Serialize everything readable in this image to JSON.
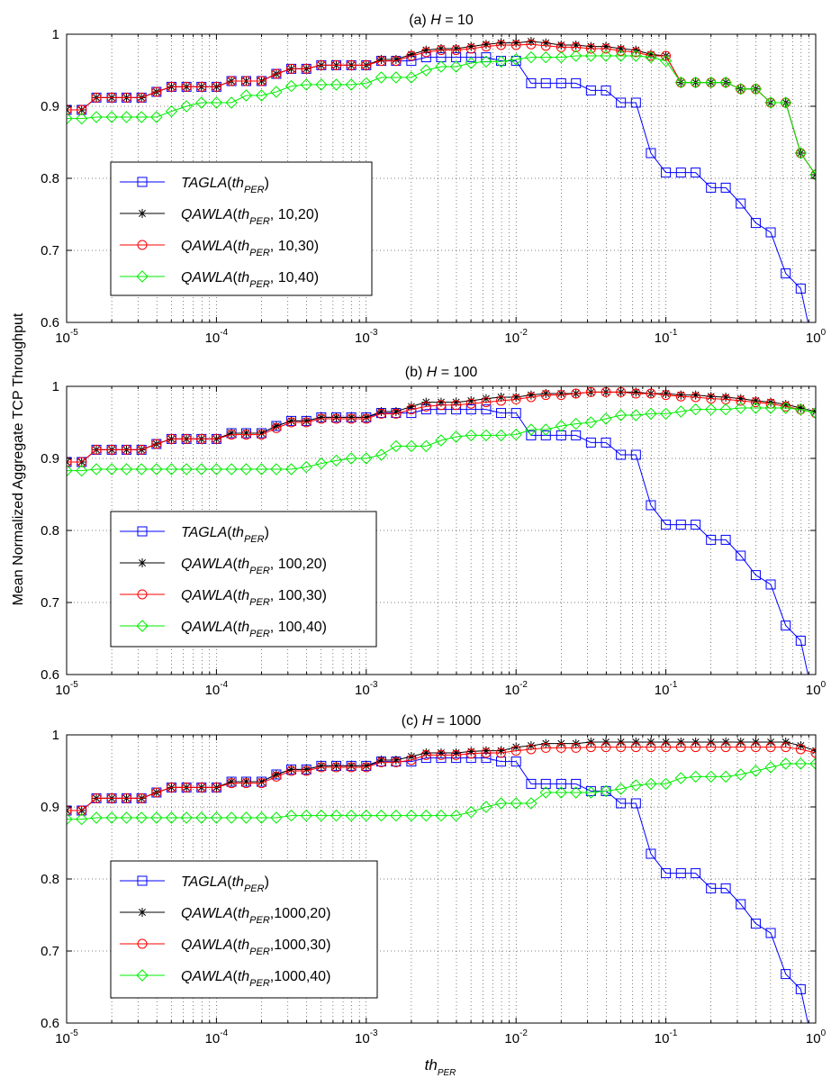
{
  "figure": {
    "ylabel": "Mean Normalized Aggregate TCP Throughput",
    "xlabel": {
      "main": "th",
      "sub": "PER"
    }
  },
  "chart_data": [
    {
      "type": "line",
      "title": {
        "prefix": "(a) ",
        "var": "H",
        "suffix": " =  10"
      },
      "xscale": "log",
      "xlim": [
        1e-05,
        1
      ],
      "ylim": [
        0.6,
        1
      ],
      "xticks": [
        {
          "base": "10",
          "exp": "-5"
        },
        {
          "base": "10",
          "exp": "-4"
        },
        {
          "base": "10",
          "exp": "-3"
        },
        {
          "base": "10",
          "exp": "-2"
        },
        {
          "base": "10",
          "exp": "-1"
        },
        {
          "base": "10",
          "exp": "0"
        }
      ],
      "yticks": [
        "0.6",
        "0.7",
        "0.8",
        "0.9",
        "1"
      ],
      "grid": true,
      "legend_placement": "lower-left",
      "x": [
        1e-05,
        1.26e-05,
        1.58e-05,
        2e-05,
        2.51e-05,
        3.16e-05,
        3.98e-05,
        5.01e-05,
        6.31e-05,
        7.94e-05,
        0.0001,
        0.000126,
        0.000158,
        0.0002,
        0.000251,
        0.000316,
        0.000398,
        0.000501,
        0.000631,
        0.000794,
        0.001,
        0.00126,
        0.00158,
        0.002,
        0.00251,
        0.00316,
        0.00398,
        0.00501,
        0.00631,
        0.00794,
        0.01,
        0.0126,
        0.0158,
        0.02,
        0.0251,
        0.0316,
        0.0398,
        0.0501,
        0.0631,
        0.0794,
        0.1,
        0.126,
        0.158,
        0.2,
        0.251,
        0.316,
        0.398,
        0.501,
        0.631,
        0.794,
        1
      ],
      "series": [
        {
          "label": {
            "fn": "TAGLA",
            "arg": "th",
            "sub": "PER",
            "rest": ")"
          },
          "color": "#0000ff",
          "marker": "square",
          "values": [
            0.895,
            0.895,
            0.912,
            0.912,
            0.912,
            0.912,
            0.92,
            0.927,
            0.927,
            0.927,
            0.927,
            0.935,
            0.935,
            0.935,
            0.945,
            0.952,
            0.952,
            0.957,
            0.957,
            0.957,
            0.957,
            0.963,
            0.963,
            0.963,
            0.968,
            0.968,
            0.968,
            0.968,
            0.968,
            0.963,
            0.963,
            0.932,
            0.932,
            0.932,
            0.932,
            0.922,
            0.922,
            0.905,
            0.905,
            0.835,
            0.808,
            0.808,
            0.808,
            0.787,
            0.787,
            0.765,
            0.738,
            0.725,
            0.668,
            0.647,
            0.55
          ]
        },
        {
          "label": {
            "fn": "QAWLA",
            "arg": "th",
            "sub": "PER",
            "rest": ",  10,20)"
          },
          "color": "#000000",
          "marker": "star",
          "values": [
            0.895,
            0.895,
            0.912,
            0.912,
            0.912,
            0.912,
            0.92,
            0.927,
            0.927,
            0.927,
            0.927,
            0.935,
            0.935,
            0.935,
            0.945,
            0.952,
            0.952,
            0.957,
            0.957,
            0.957,
            0.957,
            0.965,
            0.965,
            0.972,
            0.978,
            0.98,
            0.98,
            0.983,
            0.986,
            0.988,
            0.988,
            0.99,
            0.988,
            0.985,
            0.985,
            0.983,
            0.983,
            0.98,
            0.978,
            0.972,
            0.97,
            0.933,
            0.933,
            0.933,
            0.933,
            0.924,
            0.924,
            0.905,
            0.905,
            0.835,
            0.805
          ]
        },
        {
          "label": {
            "fn": "QAWLA",
            "arg": "th",
            "sub": "PER",
            "rest": ",  10,30)"
          },
          "color": "#ff0000",
          "marker": "circle",
          "values": [
            0.895,
            0.895,
            0.912,
            0.912,
            0.912,
            0.912,
            0.92,
            0.927,
            0.927,
            0.927,
            0.927,
            0.935,
            0.935,
            0.935,
            0.945,
            0.952,
            0.952,
            0.957,
            0.957,
            0.957,
            0.957,
            0.963,
            0.963,
            0.97,
            0.975,
            0.978,
            0.978,
            0.98,
            0.983,
            0.985,
            0.985,
            0.986,
            0.984,
            0.982,
            0.982,
            0.98,
            0.98,
            0.977,
            0.975,
            0.97,
            0.97,
            0.933,
            0.933,
            0.933,
            0.933,
            0.924,
            0.924,
            0.905,
            0.905,
            0.835,
            0.805
          ]
        },
        {
          "label": {
            "fn": "QAWLA",
            "arg": "th",
            "sub": "PER",
            "rest": ",  10,40)"
          },
          "color": "#00ee00",
          "marker": "diamond",
          "values": [
            0.883,
            0.883,
            0.885,
            0.885,
            0.885,
            0.885,
            0.885,
            0.893,
            0.9,
            0.905,
            0.905,
            0.905,
            0.915,
            0.915,
            0.92,
            0.928,
            0.93,
            0.93,
            0.93,
            0.93,
            0.932,
            0.94,
            0.94,
            0.94,
            0.95,
            0.955,
            0.955,
            0.96,
            0.962,
            0.962,
            0.965,
            0.968,
            0.968,
            0.968,
            0.97,
            0.97,
            0.97,
            0.97,
            0.97,
            0.968,
            0.963,
            0.933,
            0.933,
            0.933,
            0.933,
            0.924,
            0.924,
            0.905,
            0.905,
            0.835,
            0.805
          ]
        }
      ]
    },
    {
      "type": "line",
      "title": {
        "prefix": "(b) ",
        "var": "H",
        "suffix": " = 100"
      },
      "xscale": "log",
      "xlim": [
        1e-05,
        1
      ],
      "ylim": [
        0.6,
        1
      ],
      "xticks": [
        {
          "base": "10",
          "exp": "-5"
        },
        {
          "base": "10",
          "exp": "-4"
        },
        {
          "base": "10",
          "exp": "-3"
        },
        {
          "base": "10",
          "exp": "-2"
        },
        {
          "base": "10",
          "exp": "-1"
        },
        {
          "base": "10",
          "exp": "0"
        }
      ],
      "yticks": [
        "0.6",
        "0.7",
        "0.8",
        "0.9",
        "1"
      ],
      "grid": true,
      "legend_placement": "lower-left",
      "x": [
        1e-05,
        1.26e-05,
        1.58e-05,
        2e-05,
        2.51e-05,
        3.16e-05,
        3.98e-05,
        5.01e-05,
        6.31e-05,
        7.94e-05,
        0.0001,
        0.000126,
        0.000158,
        0.0002,
        0.000251,
        0.000316,
        0.000398,
        0.000501,
        0.000631,
        0.000794,
        0.001,
        0.00126,
        0.00158,
        0.002,
        0.00251,
        0.00316,
        0.00398,
        0.00501,
        0.00631,
        0.00794,
        0.01,
        0.0126,
        0.0158,
        0.02,
        0.0251,
        0.0316,
        0.0398,
        0.0501,
        0.0631,
        0.0794,
        0.1,
        0.126,
        0.158,
        0.2,
        0.251,
        0.316,
        0.398,
        0.501,
        0.631,
        0.794,
        1
      ],
      "series": [
        {
          "label": {
            "fn": "TAGLA",
            "arg": "th",
            "sub": "PER",
            "rest": ")"
          },
          "color": "#0000ff",
          "marker": "square",
          "values": [
            0.895,
            0.895,
            0.912,
            0.912,
            0.912,
            0.912,
            0.92,
            0.927,
            0.927,
            0.927,
            0.927,
            0.935,
            0.935,
            0.935,
            0.945,
            0.952,
            0.952,
            0.957,
            0.957,
            0.957,
            0.957,
            0.963,
            0.963,
            0.963,
            0.968,
            0.968,
            0.968,
            0.968,
            0.968,
            0.963,
            0.963,
            0.932,
            0.932,
            0.932,
            0.932,
            0.922,
            0.922,
            0.905,
            0.905,
            0.835,
            0.808,
            0.808,
            0.808,
            0.787,
            0.787,
            0.765,
            0.738,
            0.725,
            0.668,
            0.647,
            0.55
          ]
        },
        {
          "label": {
            "fn": "QAWLA",
            "arg": "th",
            "sub": "PER",
            "rest": ", 100,20)"
          },
          "color": "#000000",
          "marker": "star",
          "values": [
            0.895,
            0.895,
            0.912,
            0.912,
            0.912,
            0.912,
            0.92,
            0.927,
            0.927,
            0.927,
            0.927,
            0.935,
            0.935,
            0.935,
            0.945,
            0.952,
            0.952,
            0.957,
            0.957,
            0.957,
            0.957,
            0.965,
            0.965,
            0.972,
            0.978,
            0.978,
            0.978,
            0.98,
            0.983,
            0.985,
            0.985,
            0.988,
            0.99,
            0.99,
            0.99,
            0.992,
            0.992,
            0.992,
            0.992,
            0.99,
            0.99,
            0.988,
            0.988,
            0.986,
            0.985,
            0.983,
            0.98,
            0.978,
            0.975,
            0.97,
            0.965
          ]
        },
        {
          "label": {
            "fn": "QAWLA",
            "arg": "th",
            "sub": "PER",
            "rest": ", 100,30)"
          },
          "color": "#ff0000",
          "marker": "circle",
          "values": [
            0.895,
            0.895,
            0.912,
            0.912,
            0.912,
            0.912,
            0.92,
            0.927,
            0.927,
            0.927,
            0.927,
            0.933,
            0.933,
            0.933,
            0.942,
            0.95,
            0.95,
            0.955,
            0.955,
            0.955,
            0.955,
            0.962,
            0.962,
            0.968,
            0.972,
            0.974,
            0.974,
            0.976,
            0.978,
            0.98,
            0.982,
            0.985,
            0.988,
            0.988,
            0.99,
            0.992,
            0.992,
            0.992,
            0.99,
            0.99,
            0.988,
            0.986,
            0.985,
            0.983,
            0.982,
            0.98,
            0.978,
            0.976,
            0.972,
            0.968,
            0.963
          ]
        },
        {
          "label": {
            "fn": "QAWLA",
            "arg": "th",
            "sub": "PER",
            "rest": ", 100,40)"
          },
          "color": "#00ee00",
          "marker": "diamond",
          "values": [
            0.883,
            0.883,
            0.885,
            0.885,
            0.885,
            0.885,
            0.885,
            0.885,
            0.885,
            0.885,
            0.885,
            0.885,
            0.885,
            0.885,
            0.885,
            0.885,
            0.888,
            0.893,
            0.897,
            0.9,
            0.9,
            0.905,
            0.917,
            0.917,
            0.917,
            0.925,
            0.93,
            0.932,
            0.932,
            0.932,
            0.933,
            0.94,
            0.94,
            0.945,
            0.948,
            0.95,
            0.955,
            0.96,
            0.96,
            0.962,
            0.962,
            0.965,
            0.968,
            0.968,
            0.968,
            0.97,
            0.97,
            0.97,
            0.97,
            0.968,
            0.963
          ]
        }
      ]
    },
    {
      "type": "line",
      "title": {
        "prefix": "(c) ",
        "var": "H",
        "suffix": " = 1000"
      },
      "xscale": "log",
      "xlim": [
        1e-05,
        1
      ],
      "ylim": [
        0.6,
        1
      ],
      "xticks": [
        {
          "base": "10",
          "exp": "-5"
        },
        {
          "base": "10",
          "exp": "-4"
        },
        {
          "base": "10",
          "exp": "-3"
        },
        {
          "base": "10",
          "exp": "-2"
        },
        {
          "base": "10",
          "exp": "-1"
        },
        {
          "base": "10",
          "exp": "0"
        }
      ],
      "yticks": [
        "0.6",
        "0.7",
        "0.8",
        "0.9",
        "1"
      ],
      "grid": true,
      "legend_placement": "lower-left",
      "x": [
        1e-05,
        1.26e-05,
        1.58e-05,
        2e-05,
        2.51e-05,
        3.16e-05,
        3.98e-05,
        5.01e-05,
        6.31e-05,
        7.94e-05,
        0.0001,
        0.000126,
        0.000158,
        0.0002,
        0.000251,
        0.000316,
        0.000398,
        0.000501,
        0.000631,
        0.000794,
        0.001,
        0.00126,
        0.00158,
        0.002,
        0.00251,
        0.00316,
        0.00398,
        0.00501,
        0.00631,
        0.00794,
        0.01,
        0.0126,
        0.0158,
        0.02,
        0.0251,
        0.0316,
        0.0398,
        0.0501,
        0.0631,
        0.0794,
        0.1,
        0.126,
        0.158,
        0.2,
        0.251,
        0.316,
        0.398,
        0.501,
        0.631,
        0.794,
        1
      ],
      "series": [
        {
          "label": {
            "fn": "TAGLA",
            "arg": "th",
            "sub": "PER",
            "rest": ")"
          },
          "color": "#0000ff",
          "marker": "square",
          "values": [
            0.895,
            0.895,
            0.912,
            0.912,
            0.912,
            0.912,
            0.92,
            0.927,
            0.927,
            0.927,
            0.927,
            0.935,
            0.935,
            0.935,
            0.945,
            0.952,
            0.952,
            0.957,
            0.957,
            0.957,
            0.957,
            0.963,
            0.963,
            0.963,
            0.968,
            0.968,
            0.968,
            0.968,
            0.968,
            0.963,
            0.963,
            0.932,
            0.932,
            0.932,
            0.932,
            0.922,
            0.922,
            0.905,
            0.905,
            0.835,
            0.808,
            0.808,
            0.808,
            0.787,
            0.787,
            0.765,
            0.738,
            0.725,
            0.668,
            0.647,
            0.55
          ]
        },
        {
          "label": {
            "fn": "QAWLA",
            "arg": "th",
            "sub": "PER",
            "rest": ",1000,20)"
          },
          "color": "#000000",
          "marker": "star",
          "values": [
            0.895,
            0.895,
            0.912,
            0.912,
            0.912,
            0.912,
            0.92,
            0.927,
            0.927,
            0.927,
            0.927,
            0.935,
            0.935,
            0.935,
            0.945,
            0.952,
            0.952,
            0.957,
            0.957,
            0.957,
            0.957,
            0.965,
            0.965,
            0.97,
            0.975,
            0.975,
            0.975,
            0.977,
            0.978,
            0.978,
            0.983,
            0.985,
            0.988,
            0.988,
            0.988,
            0.99,
            0.99,
            0.99,
            0.99,
            0.99,
            0.99,
            0.99,
            0.99,
            0.99,
            0.99,
            0.99,
            0.99,
            0.99,
            0.99,
            0.985,
            0.978
          ]
        },
        {
          "label": {
            "fn": "QAWLA",
            "arg": "th",
            "sub": "PER",
            "rest": ",1000,30)"
          },
          "color": "#ff0000",
          "marker": "circle",
          "values": [
            0.895,
            0.895,
            0.912,
            0.912,
            0.912,
            0.912,
            0.92,
            0.927,
            0.927,
            0.927,
            0.927,
            0.933,
            0.933,
            0.933,
            0.942,
            0.95,
            0.95,
            0.955,
            0.955,
            0.955,
            0.955,
            0.962,
            0.962,
            0.965,
            0.972,
            0.972,
            0.972,
            0.974,
            0.975,
            0.975,
            0.978,
            0.98,
            0.982,
            0.982,
            0.982,
            0.983,
            0.983,
            0.983,
            0.983,
            0.983,
            0.983,
            0.983,
            0.983,
            0.983,
            0.983,
            0.983,
            0.983,
            0.983,
            0.983,
            0.98,
            0.975
          ]
        },
        {
          "label": {
            "fn": "QAWLA",
            "arg": "th",
            "sub": "PER",
            "rest": ",1000,40)"
          },
          "color": "#00ee00",
          "marker": "diamond",
          "values": [
            0.883,
            0.883,
            0.885,
            0.885,
            0.885,
            0.885,
            0.885,
            0.885,
            0.885,
            0.885,
            0.885,
            0.885,
            0.885,
            0.885,
            0.885,
            0.888,
            0.888,
            0.888,
            0.888,
            0.888,
            0.888,
            0.888,
            0.888,
            0.888,
            0.888,
            0.888,
            0.888,
            0.893,
            0.9,
            0.905,
            0.905,
            0.905,
            0.92,
            0.92,
            0.92,
            0.92,
            0.922,
            0.925,
            0.93,
            0.932,
            0.932,
            0.94,
            0.942,
            0.942,
            0.942,
            0.945,
            0.95,
            0.955,
            0.96,
            0.96,
            0.96
          ]
        }
      ]
    }
  ]
}
